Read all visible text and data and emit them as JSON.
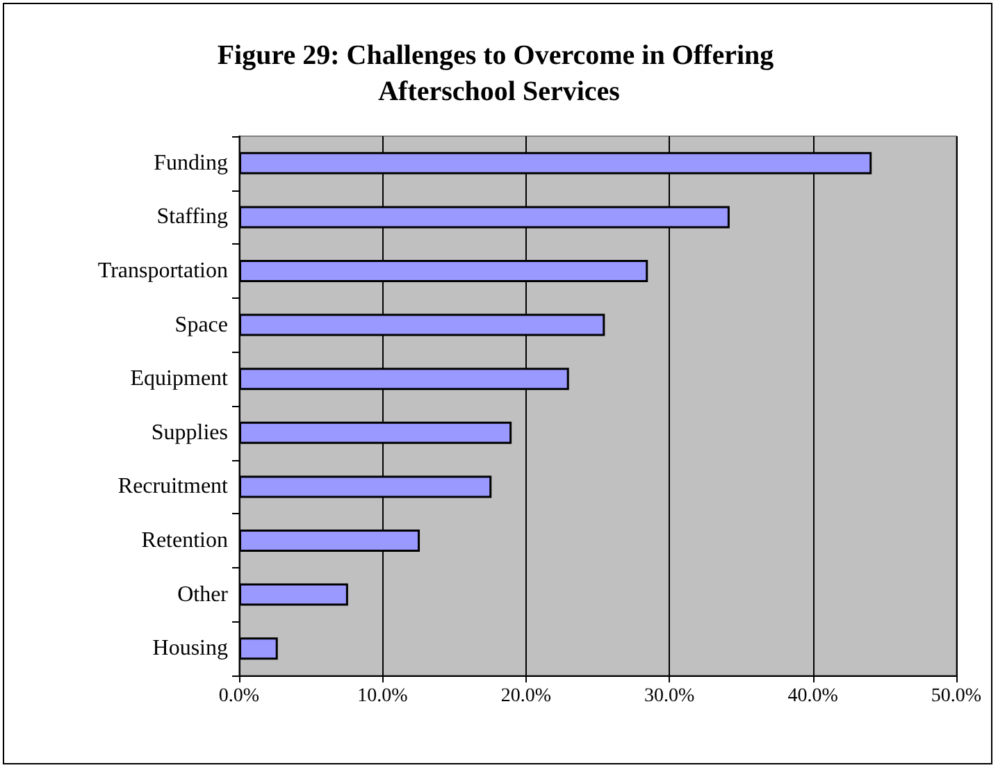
{
  "chart_data": {
    "type": "bar",
    "orientation": "horizontal",
    "title": "Figure 29: Challenges to Overcome in Offering Afterschool Services",
    "categories": [
      "Funding",
      "Staffing",
      "Transportation",
      "Space",
      "Equipment",
      "Supplies",
      "Recruitment",
      "Retention",
      "Other",
      "Housing"
    ],
    "values": [
      44.1,
      34.2,
      28.5,
      25.5,
      23.0,
      19.0,
      17.6,
      12.6,
      7.6,
      2.7
    ],
    "color": "#9999ff",
    "xlim": [
      0,
      50
    ],
    "xticks": [
      {
        "value": 0,
        "label": "0.0%"
      },
      {
        "value": 10,
        "label": "10.0%"
      },
      {
        "value": 20,
        "label": "20.0%"
      },
      {
        "value": 30,
        "label": "30.0%"
      },
      {
        "value": 40,
        "label": "40.0%"
      },
      {
        "value": 50,
        "label": "50.0%"
      }
    ],
    "grid": "x"
  }
}
